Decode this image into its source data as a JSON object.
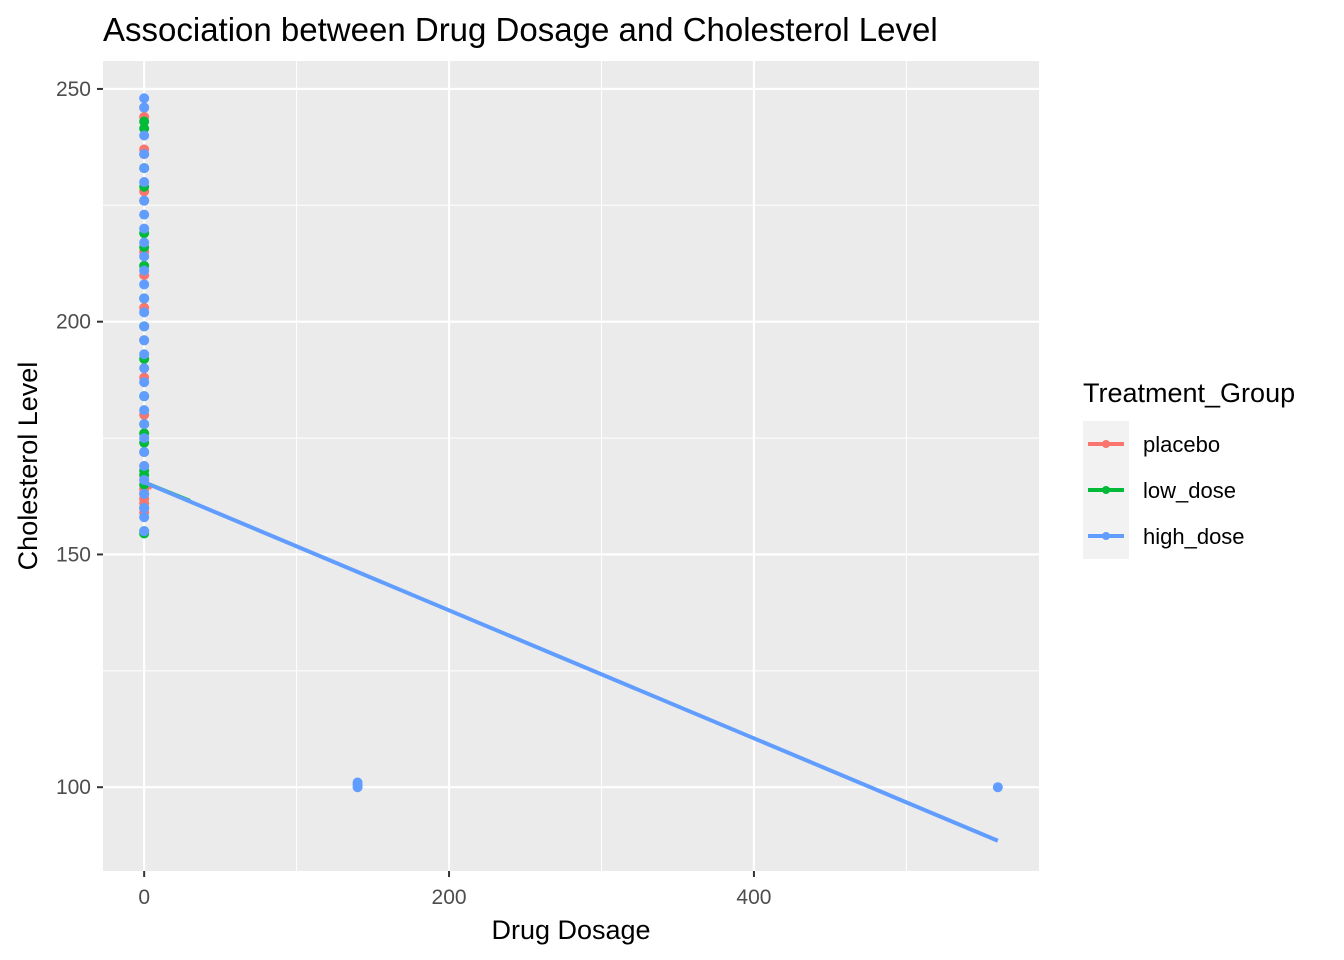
{
  "chart_data": {
    "type": "scatter",
    "title": "Association between Drug Dosage and Cholesterol Level",
    "xlabel": "Drug Dosage",
    "ylabel": "Cholesterol Level",
    "xlim": [
      -27,
      587
    ],
    "ylim": [
      82,
      256
    ],
    "x_ticks": [
      0,
      200,
      400
    ],
    "x_tick_labels": [
      "0",
      "200",
      "400"
    ],
    "y_ticks": [
      100,
      150,
      200,
      250
    ],
    "y_tick_labels": [
      "100",
      "150",
      "200",
      "250"
    ],
    "grid": true,
    "legend": {
      "title": "Treatment_Group",
      "placement": "right",
      "entries": [
        "placebo",
        "low_dose",
        "high_dose"
      ]
    },
    "series": [
      {
        "name": "placebo",
        "color": "#F8766D",
        "points": [
          [
            0,
            246
          ],
          [
            0,
            244
          ],
          [
            0,
            237
          ],
          [
            0,
            236
          ],
          [
            0,
            228
          ],
          [
            0,
            226
          ],
          [
            0,
            215
          ],
          [
            0,
            210
          ],
          [
            0,
            203
          ],
          [
            0,
            196
          ],
          [
            0,
            188
          ],
          [
            0,
            180
          ],
          [
            0,
            172
          ],
          [
            0,
            169
          ],
          [
            0,
            166
          ],
          [
            0,
            164
          ],
          [
            0,
            163
          ],
          [
            0,
            162
          ],
          [
            0,
            161
          ],
          [
            0,
            160
          ],
          [
            0,
            159
          ]
        ],
        "fit_line": [
          [
            0,
            165
          ],
          [
            5,
            164.3
          ]
        ]
      },
      {
        "name": "low_dose",
        "color": "#00BA38",
        "points": [
          [
            0,
            243
          ],
          [
            0,
            241.5
          ],
          [
            0,
            233
          ],
          [
            0,
            229
          ],
          [
            0,
            219
          ],
          [
            0,
            216
          ],
          [
            0,
            212
          ],
          [
            0,
            205
          ],
          [
            0,
            199
          ],
          [
            0,
            192
          ],
          [
            0,
            184
          ],
          [
            0,
            178
          ],
          [
            0,
            176
          ],
          [
            0,
            174
          ],
          [
            0,
            168
          ],
          [
            0,
            167
          ],
          [
            0,
            165
          ],
          [
            0,
            155
          ],
          [
            0,
            154.5
          ]
        ],
        "fit_line": [
          [
            0,
            165.5
          ],
          [
            30,
            161.5
          ]
        ]
      },
      {
        "name": "high_dose",
        "color": "#619CFF",
        "points": [
          [
            0,
            248
          ],
          [
            0,
            246
          ],
          [
            0,
            240
          ],
          [
            0,
            236
          ],
          [
            0,
            233
          ],
          [
            0,
            230
          ],
          [
            0,
            226
          ],
          [
            0,
            223
          ],
          [
            0,
            220
          ],
          [
            0,
            217
          ],
          [
            0,
            214
          ],
          [
            0,
            211
          ],
          [
            0,
            208
          ],
          [
            0,
            205
          ],
          [
            0,
            202
          ],
          [
            0,
            199
          ],
          [
            0,
            196
          ],
          [
            0,
            193
          ],
          [
            0,
            190
          ],
          [
            0,
            187
          ],
          [
            0,
            184
          ],
          [
            0,
            181
          ],
          [
            0,
            178
          ],
          [
            0,
            175
          ],
          [
            0,
            172
          ],
          [
            0,
            169
          ],
          [
            0,
            166
          ],
          [
            0,
            163
          ],
          [
            0,
            160
          ],
          [
            0,
            158
          ],
          [
            0,
            155
          ],
          [
            140,
            101
          ],
          [
            140,
            100.5
          ],
          [
            140,
            100
          ],
          [
            560,
            100
          ]
        ],
        "fit_line": [
          [
            0,
            165.5
          ],
          [
            560,
            88.5
          ]
        ]
      }
    ]
  }
}
